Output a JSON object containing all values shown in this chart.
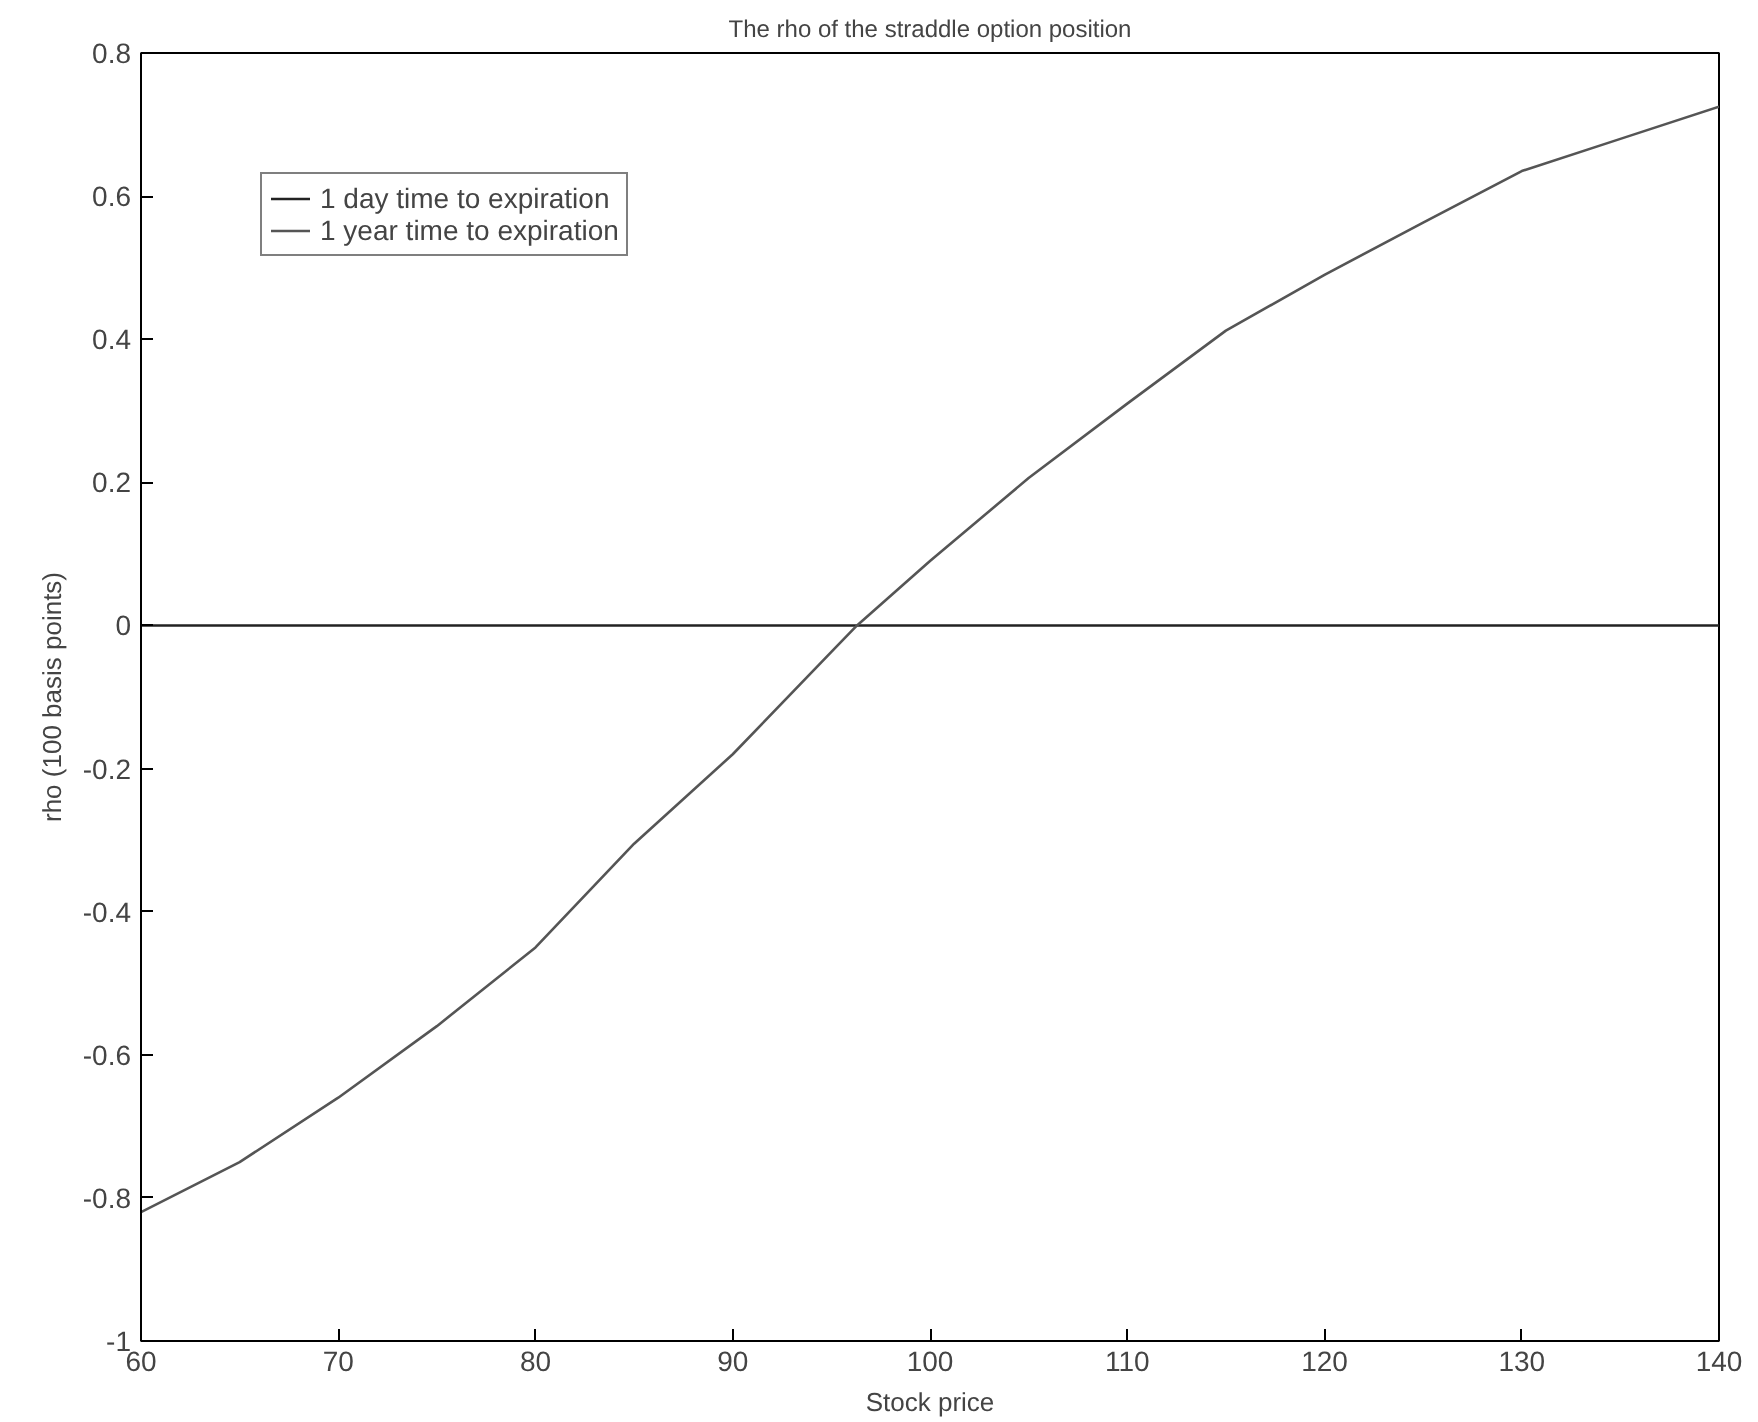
{
  "chart_data": {
    "type": "line",
    "title": "The rho of the straddle option position",
    "xlabel": "Stock price",
    "ylabel": "rho (100 basis points)",
    "xlim": [
      60,
      140
    ],
    "xticks": [
      60,
      70,
      80,
      90,
      100,
      110,
      120,
      130,
      140
    ],
    "ylim": [
      -1,
      0.8
    ],
    "yticks": [
      -1,
      -0.8,
      -0.6,
      -0.4,
      -0.2,
      0,
      0.2,
      0.4,
      0.6,
      0.8
    ],
    "grid": false,
    "legend": "top left",
    "marker": "none",
    "line_style": "solid",
    "series": [
      {
        "name": "1 day time to expiration",
        "color": "#222222",
        "x": [
          60,
          96,
          101,
          140
        ],
        "values": [
          0,
          0,
          0,
          0
        ]
      },
      {
        "name": "1 year time to expiration",
        "color": "#555555",
        "x": [
          60,
          65,
          70,
          75,
          80,
          85,
          90,
          95,
          96.3,
          100,
          105,
          110,
          115,
          120,
          125,
          130,
          135,
          140
        ],
        "values": [
          -0.82,
          -0.75,
          -0.66,
          -0.56,
          -0.45,
          -0.305,
          -0.18,
          -0.037,
          0,
          0.09,
          0.206,
          0.31,
          0.412,
          0.49,
          0.563,
          0.635,
          0.68,
          0.725
        ]
      }
    ]
  }
}
